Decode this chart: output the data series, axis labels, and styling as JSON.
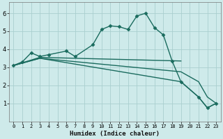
{
  "xlabel": "Humidex (Indice chaleur)",
  "background_color": "#ceeaea",
  "line_color": "#1a6b5e",
  "grid_color": "#aacfcf",
  "xlim": [
    -0.5,
    23.5
  ],
  "ylim": [
    0,
    6.6
  ],
  "yticks": [
    1,
    2,
    3,
    4,
    5,
    6
  ],
  "xticks": [
    0,
    1,
    2,
    3,
    4,
    5,
    6,
    7,
    8,
    9,
    10,
    11,
    12,
    13,
    14,
    15,
    16,
    17,
    18,
    19,
    20,
    21,
    22,
    23
  ],
  "series": [
    {
      "x": [
        0,
        1,
        2,
        3,
        4,
        6,
        7,
        9,
        10,
        11,
        12,
        13,
        14,
        15,
        16,
        17,
        18,
        19,
        21,
        22,
        23
      ],
      "y": [
        3.1,
        3.3,
        3.8,
        3.6,
        3.7,
        3.9,
        3.6,
        4.25,
        5.1,
        5.3,
        5.25,
        5.1,
        5.85,
        6.0,
        5.2,
        4.8,
        3.35,
        2.2,
        1.35,
        0.75,
        1.0
      ],
      "marker": "D",
      "markersize": 2.5,
      "linewidth": 1.0,
      "linestyle": "-"
    },
    {
      "x": [
        0,
        3,
        19
      ],
      "y": [
        3.1,
        3.55,
        3.35
      ],
      "marker": null,
      "markersize": 0,
      "linewidth": 1.0,
      "linestyle": "-"
    },
    {
      "x": [
        0,
        3,
        19,
        21,
        22,
        23
      ],
      "y": [
        3.1,
        3.5,
        2.2,
        1.35,
        0.75,
        1.0
      ],
      "marker": null,
      "markersize": 0,
      "linewidth": 1.0,
      "linestyle": "-"
    },
    {
      "x": [
        0,
        3,
        19,
        21,
        22,
        23
      ],
      "y": [
        3.1,
        3.5,
        2.75,
        2.2,
        1.35,
        1.0
      ],
      "marker": null,
      "markersize": 0,
      "linewidth": 1.0,
      "linestyle": "-"
    }
  ]
}
